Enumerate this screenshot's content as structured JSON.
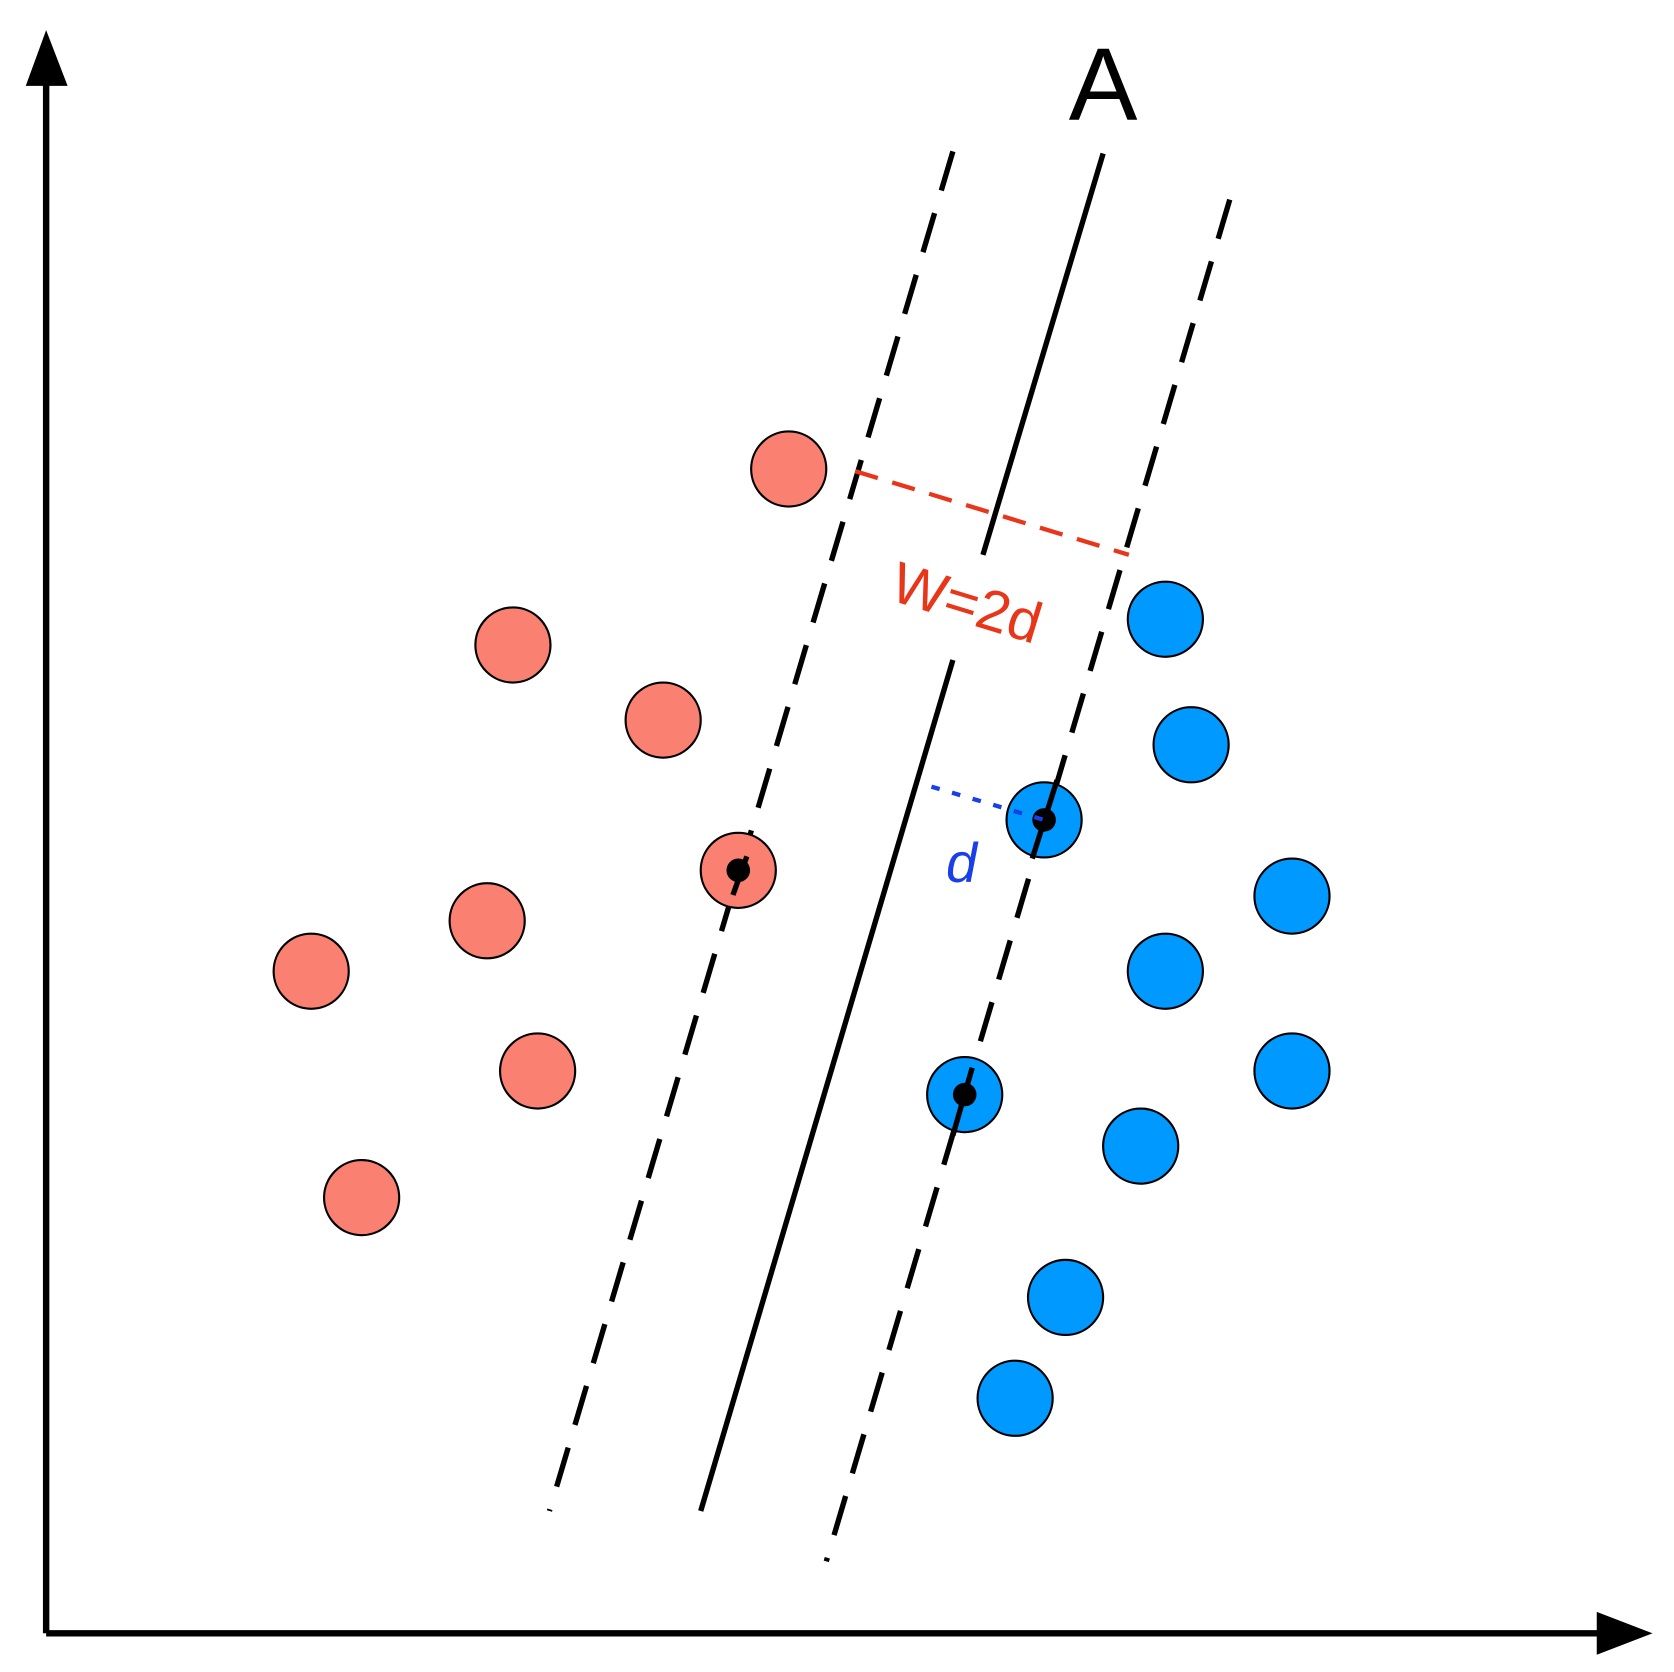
{
  "labels": {
    "hyperplane": "A",
    "margin": "W=2d",
    "distance": "d"
  }
}
